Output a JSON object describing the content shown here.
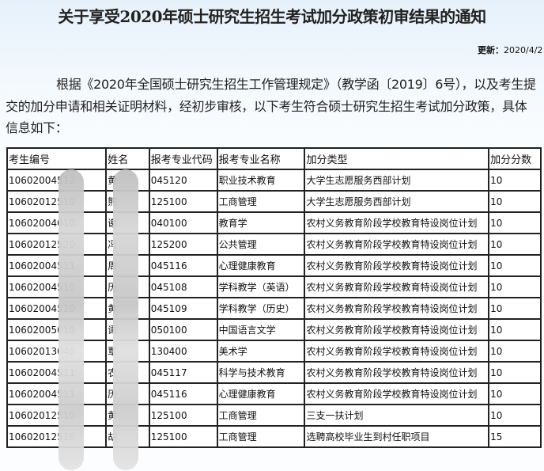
{
  "title": "关于享受2020年硕士研究生招生考试加分政策初审结果的通知",
  "update": {
    "label": "更新：",
    "value": "2020/4/2"
  },
  "paragraph": "根据《2020年全国硕士研究生招生工作管理规定》（教学函〔2019〕6号），以及考生提交的加分申请和相关证明材料，经初步审核，以下考生符合硕士研究生招生考试加分政策，具体信息如下：",
  "table": {
    "headers": [
      "考生编号",
      "姓名",
      "报考专业代码",
      "报考专业名称",
      "加分类型",
      "加分分数"
    ],
    "rows": [
      [
        "10602004512",
        "黄",
        "045120",
        "职业技术教育",
        "大学生志愿服务西部计划",
        "10"
      ],
      [
        "10602012510",
        "熊",
        "125100",
        "工商管理",
        "大学生志愿服务西部计划",
        "10"
      ],
      [
        "10602004010",
        "谢",
        "040100",
        "教育学",
        "农村义务教育阶段学校教育特设岗位计划",
        "10"
      ],
      [
        "10602012520",
        "冯",
        "125200",
        "公共管理",
        "农村义务教育阶段学校教育特设岗位计划",
        "10"
      ],
      [
        "10602004511",
        "周",
        "045116",
        "心理健康教育",
        "农村义务教育阶段学校教育特设岗位计划",
        "10"
      ],
      [
        "10602004510",
        "历",
        "045108",
        "学科教学（英语）",
        "农村义务教育阶段学校教育特设岗位计划",
        "10"
      ],
      [
        "10602004510",
        "黄",
        "045109",
        "学科教学（历史）",
        "农村义务教育阶段学校教育特设岗位计划",
        "10"
      ],
      [
        "10602005010",
        "谭",
        "050100",
        "中国语言文学",
        "农村义务教育阶段学校教育特设岗位计划",
        "10"
      ],
      [
        "10602013040",
        "覃",
        "130400",
        "美术学",
        "农村义务教育阶段学校教育特设岗位计划",
        "10"
      ],
      [
        "10602004511",
        "农",
        "045117",
        "科学与技术教育",
        "农村义务教育阶段学校教育特设岗位计划",
        "10"
      ],
      [
        "10602004511",
        "历",
        "045116",
        "心理健康教育",
        "农村义务教育阶段学校教育特设岗位计划",
        "10"
      ],
      [
        "10602012510",
        "黄",
        "125100",
        "工商管理",
        "三支一扶计划",
        "10"
      ],
      [
        "10602012510",
        "胡",
        "125100",
        "工商管理",
        "选聘高校毕业生到村任职项目",
        "15"
      ]
    ]
  }
}
